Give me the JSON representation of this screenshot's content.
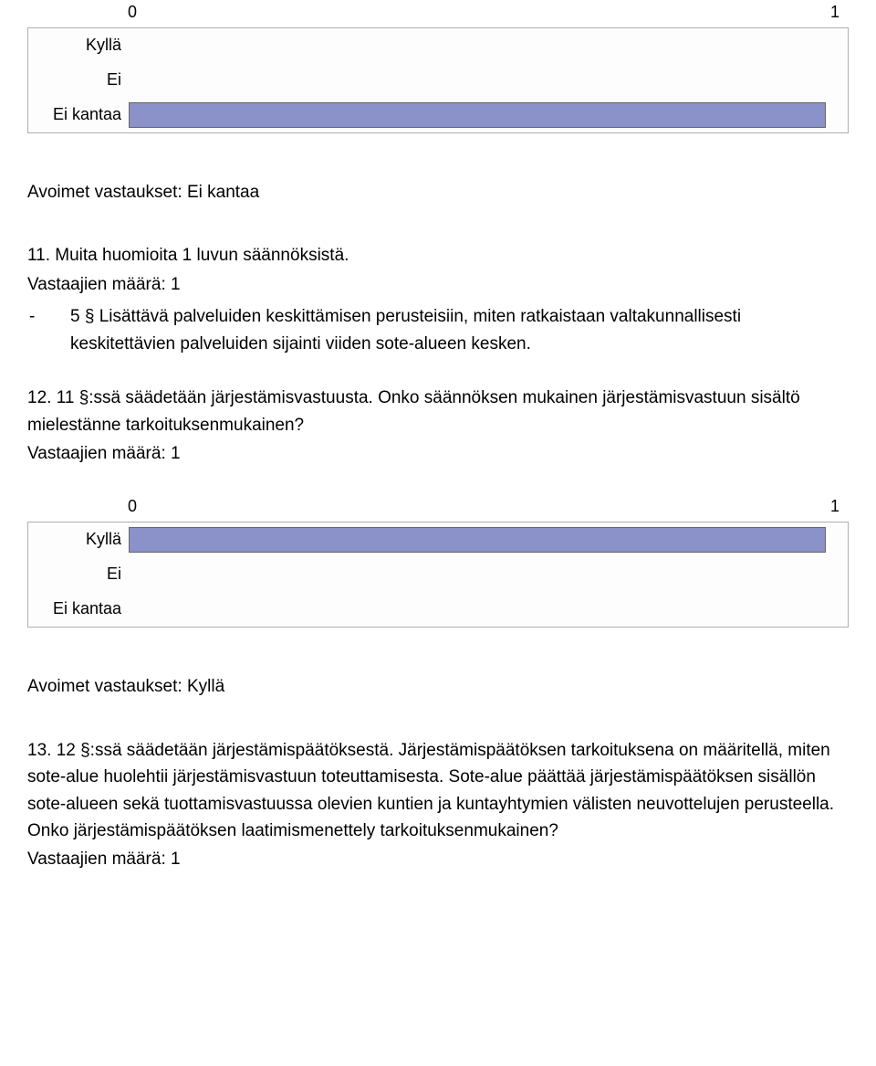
{
  "chart1": {
    "type": "bar-horizontal",
    "xaxis_min_label": "0",
    "xaxis_max_label": "1",
    "max_value": 1,
    "bar_color": "#8b92ca",
    "bar_border_color": "#666666",
    "track_bg": "#fdfdfd",
    "rows": [
      {
        "label": "Kyllä",
        "value": 0
      },
      {
        "label": "Ei",
        "value": 0
      },
      {
        "label": "Ei kantaa",
        "value": 1
      }
    ]
  },
  "avoimet1_heading": "Avoimet vastaukset: Ei kantaa",
  "q11": {
    "text": "11. Muita huomioita 1 luvun säännöksistä.",
    "respondents": "Vastaajien määrä: 1",
    "bullet_dash": "-",
    "bullet_text": "5 § Lisättävä palveluiden keskittämisen perusteisiin, miten ratkaistaan valtakunnallisesti keskitettävien palveluiden sijainti viiden sote-alueen kesken."
  },
  "q12": {
    "text": "12. 11 §:ssä säädetään järjestämisvastuusta. Onko säännöksen mukainen järjestämisvastuun sisältö mielestänne tarkoituksenmukainen?",
    "respondents": "Vastaajien määrä: 1"
  },
  "chart2": {
    "type": "bar-horizontal",
    "xaxis_min_label": "0",
    "xaxis_max_label": "1",
    "max_value": 1,
    "bar_color": "#8b92ca",
    "bar_border_color": "#666666",
    "track_bg": "#fdfdfd",
    "rows": [
      {
        "label": "Kyllä",
        "value": 1
      },
      {
        "label": "Ei",
        "value": 0
      },
      {
        "label": "Ei kantaa",
        "value": 0
      }
    ]
  },
  "avoimet2_heading": "Avoimet vastaukset: Kyllä",
  "q13": {
    "text": "13. 12 §:ssä säädetään järjestämispäätöksestä. Järjestämispäätöksen tarkoituksena on määritellä, miten sote-alue huolehtii järjestämisvastuun toteuttamisesta. Sote-alue päättää järjestämispäätöksen sisällön sote-alueen sekä tuottamisvastuussa olevien kuntien ja kuntayhtymien välisten neuvottelujen perusteella. Onko järjestämispäätöksen laatimismenettely tarkoituksenmukainen?",
    "respondents": "Vastaajien määrä: 1"
  }
}
